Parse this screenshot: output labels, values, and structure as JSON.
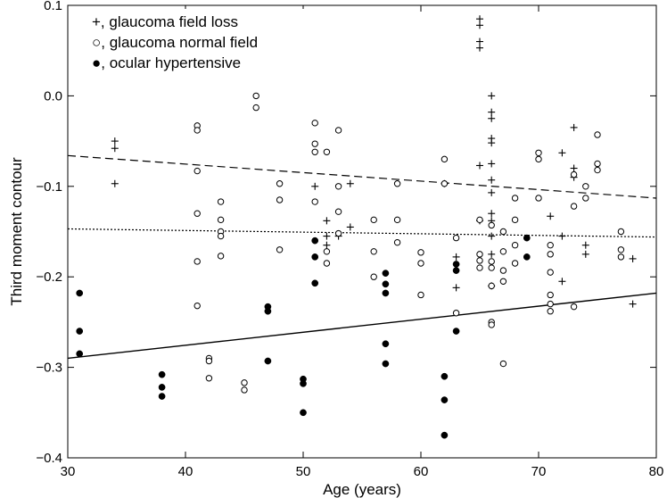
{
  "chart_data": {
    "type": "scatter",
    "title": "",
    "xlabel": "Age (years)",
    "ylabel": "Third moment contour",
    "xlim": [
      30,
      80
    ],
    "ylim": [
      -0.4,
      0.1
    ],
    "xticks": [
      "30",
      "40",
      "50",
      "60",
      "70",
      "80"
    ],
    "yticks": [
      "0.1",
      "0.0",
      "−0.1",
      "−0.2",
      "−0.3",
      "−0.4"
    ],
    "grid": false,
    "legend_position": "top-left",
    "series": [
      {
        "name": "glaucoma field loss",
        "legend_text": "+, glaucoma field loss",
        "marker": "plus",
        "points": [
          [
            34,
            -0.05
          ],
          [
            34,
            -0.058
          ],
          [
            34,
            -0.097
          ],
          [
            51,
            -0.1
          ],
          [
            52,
            -0.138
          ],
          [
            52,
            -0.155
          ],
          [
            52,
            -0.165
          ],
          [
            53,
            -0.155
          ],
          [
            54,
            -0.097
          ],
          [
            54,
            -0.145
          ],
          [
            62,
            -0.097
          ],
          [
            63,
            -0.178
          ],
          [
            63,
            -0.212
          ],
          [
            65,
            0.085
          ],
          [
            65,
            0.078
          ],
          [
            65,
            0.06
          ],
          [
            65,
            0.053
          ],
          [
            65,
            -0.077
          ],
          [
            65,
            -0.138
          ],
          [
            66,
            0.0
          ],
          [
            66,
            -0.018
          ],
          [
            66,
            -0.025
          ],
          [
            66,
            -0.047
          ],
          [
            66,
            -0.052
          ],
          [
            66,
            -0.075
          ],
          [
            66,
            -0.093
          ],
          [
            66,
            -0.107
          ],
          [
            66,
            -0.13
          ],
          [
            66,
            -0.138
          ],
          [
            66,
            -0.155
          ],
          [
            66,
            -0.175
          ],
          [
            66,
            -0.21
          ],
          [
            71,
            -0.133
          ],
          [
            72,
            -0.063
          ],
          [
            72,
            -0.155
          ],
          [
            72,
            -0.205
          ],
          [
            73,
            -0.035
          ],
          [
            73,
            -0.08
          ],
          [
            73,
            -0.09
          ],
          [
            74,
            -0.165
          ],
          [
            74,
            -0.175
          ],
          [
            78,
            -0.18
          ],
          [
            78,
            -0.23
          ]
        ]
      },
      {
        "name": "glaucoma normal field",
        "legend_text": "○, glaucoma normal field",
        "marker": "open-circle",
        "points": [
          [
            41,
            -0.033
          ],
          [
            41,
            -0.038
          ],
          [
            41,
            -0.083
          ],
          [
            41,
            -0.13
          ],
          [
            41,
            -0.183
          ],
          [
            41,
            -0.232
          ],
          [
            42,
            -0.29
          ],
          [
            42,
            -0.293
          ],
          [
            42,
            -0.312
          ],
          [
            43,
            -0.117
          ],
          [
            43,
            -0.137
          ],
          [
            43,
            -0.15
          ],
          [
            43,
            -0.155
          ],
          [
            43,
            -0.177
          ],
          [
            45,
            -0.317
          ],
          [
            45,
            -0.325
          ],
          [
            46,
            0.023
          ],
          [
            46,
            0.0
          ],
          [
            46,
            -0.013
          ],
          [
            48,
            -0.097
          ],
          [
            48,
            -0.115
          ],
          [
            48,
            -0.17
          ],
          [
            51,
            -0.03
          ],
          [
            51,
            -0.053
          ],
          [
            51,
            -0.062
          ],
          [
            51,
            -0.117
          ],
          [
            52,
            -0.062
          ],
          [
            52,
            -0.172
          ],
          [
            52,
            -0.185
          ],
          [
            53,
            -0.038
          ],
          [
            53,
            -0.1
          ],
          [
            53,
            -0.128
          ],
          [
            53,
            -0.152
          ],
          [
            56,
            -0.137
          ],
          [
            56,
            -0.172
          ],
          [
            56,
            -0.2
          ],
          [
            58,
            -0.097
          ],
          [
            58,
            -0.137
          ],
          [
            58,
            -0.162
          ],
          [
            60,
            -0.173
          ],
          [
            60,
            -0.185
          ],
          [
            60,
            -0.22
          ],
          [
            62,
            -0.07
          ],
          [
            62,
            -0.097
          ],
          [
            63,
            -0.157
          ],
          [
            63,
            -0.24
          ],
          [
            65,
            -0.137
          ],
          [
            65,
            -0.175
          ],
          [
            65,
            -0.182
          ],
          [
            65,
            -0.19
          ],
          [
            66,
            -0.143
          ],
          [
            66,
            -0.183
          ],
          [
            66,
            -0.19
          ],
          [
            66,
            -0.21
          ],
          [
            66,
            -0.25
          ],
          [
            66,
            -0.253
          ],
          [
            67,
            -0.15
          ],
          [
            67,
            -0.172
          ],
          [
            67,
            -0.193
          ],
          [
            67,
            -0.205
          ],
          [
            67,
            -0.296
          ],
          [
            68,
            -0.113
          ],
          [
            68,
            -0.137
          ],
          [
            68,
            -0.165
          ],
          [
            68,
            -0.185
          ],
          [
            70,
            -0.063
          ],
          [
            70,
            -0.07
          ],
          [
            70,
            -0.113
          ],
          [
            71,
            -0.165
          ],
          [
            71,
            -0.175
          ],
          [
            71,
            -0.195
          ],
          [
            71,
            -0.22
          ],
          [
            71,
            -0.23
          ],
          [
            71,
            -0.238
          ],
          [
            73,
            -0.087
          ],
          [
            73,
            -0.122
          ],
          [
            73,
            -0.233
          ],
          [
            74,
            -0.1
          ],
          [
            74,
            -0.113
          ],
          [
            75,
            -0.043
          ],
          [
            75,
            -0.075
          ],
          [
            75,
            -0.082
          ],
          [
            77,
            -0.15
          ],
          [
            77,
            -0.17
          ],
          [
            77,
            -0.178
          ]
        ]
      },
      {
        "name": "ocular hypertensive",
        "legend_text": "●, ocular hypertensive",
        "marker": "filled-circle",
        "points": [
          [
            31,
            -0.218
          ],
          [
            31,
            -0.26
          ],
          [
            31,
            -0.285
          ],
          [
            38,
            -0.308
          ],
          [
            38,
            -0.322
          ],
          [
            38,
            -0.332
          ],
          [
            47,
            -0.233
          ],
          [
            47,
            -0.238
          ],
          [
            47,
            -0.293
          ],
          [
            50,
            -0.313
          ],
          [
            50,
            -0.318
          ],
          [
            50,
            -0.35
          ],
          [
            51,
            -0.16
          ],
          [
            51,
            -0.178
          ],
          [
            51,
            -0.207
          ],
          [
            57,
            -0.196
          ],
          [
            57,
            -0.208
          ],
          [
            57,
            -0.218
          ],
          [
            57,
            -0.274
          ],
          [
            57,
            -0.296
          ],
          [
            62,
            -0.31
          ],
          [
            62,
            -0.336
          ],
          [
            62,
            -0.375
          ],
          [
            63,
            -0.186
          ],
          [
            63,
            -0.193
          ],
          [
            63,
            -0.26
          ],
          [
            69,
            -0.157
          ],
          [
            69,
            -0.178
          ]
        ]
      }
    ],
    "trend_lines": [
      {
        "name": "glaucoma field loss",
        "style": "dashed",
        "x": [
          30,
          80
        ],
        "y": [
          -0.066,
          -0.113
        ]
      },
      {
        "name": "glaucoma normal field",
        "style": "dotted",
        "x": [
          30,
          80
        ],
        "y": [
          -0.147,
          -0.156
        ]
      },
      {
        "name": "ocular hypertensive",
        "style": "solid",
        "x": [
          30,
          80
        ],
        "y": [
          -0.29,
          -0.218
        ]
      }
    ]
  }
}
